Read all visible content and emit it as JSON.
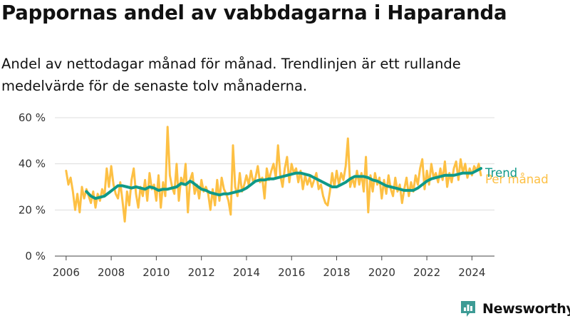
{
  "header": {
    "title": "Pappornas andel av vabbdagarna i Haparanda",
    "subtitle": "Andel av nettodagar månad för månad. Trendlinjen är ett rullande medelvärde för de senaste tolv månaderna."
  },
  "brand": {
    "name": "Newsworthy",
    "icon": "newsworthy-logo-icon",
    "color": "#3d9b95"
  },
  "colors": {
    "monthly": "#fdc044",
    "trend": "#0e9988",
    "grid": "#dddddd",
    "axis": "#444444"
  },
  "chart_data": {
    "type": "line",
    "title": "Pappornas andel av vabbdagarna i Haparanda",
    "subtitle": "Andel av nettodagar månad för månad. Trendlinjen är ett rullande medelvärde för de senaste tolv månaderna.",
    "xlabel": "",
    "ylabel": "",
    "xlim": [
      2005.5,
      2025.0
    ],
    "ylim": [
      0,
      60
    ],
    "y_ticks": [
      0,
      20,
      40,
      60
    ],
    "y_tick_labels": [
      "0 %",
      "20 %",
      "40 %",
      "60 %"
    ],
    "x_ticks": [
      2006,
      2008,
      2010,
      2012,
      2014,
      2016,
      2018,
      2020,
      2022,
      2024
    ],
    "x_tick_labels": [
      "2006",
      "2008",
      "2010",
      "2012",
      "2014",
      "2016",
      "2018",
      "2020",
      "2022",
      "2024"
    ],
    "grid": "horizontal",
    "legend": "inline-right",
    "series": [
      {
        "name": "Per månad",
        "color": "#fdc044",
        "points": [
          [
            2006.0,
            37
          ],
          [
            2006.1,
            31
          ],
          [
            2006.2,
            34
          ],
          [
            2006.3,
            28
          ],
          [
            2006.4,
            20
          ],
          [
            2006.5,
            27
          ],
          [
            2006.6,
            19
          ],
          [
            2006.7,
            30
          ],
          [
            2006.8,
            25
          ],
          [
            2006.9,
            29
          ],
          [
            2007.0,
            26
          ],
          [
            2007.1,
            23
          ],
          [
            2007.2,
            28
          ],
          [
            2007.3,
            21
          ],
          [
            2007.4,
            27
          ],
          [
            2007.5,
            24
          ],
          [
            2007.6,
            29
          ],
          [
            2007.7,
            26
          ],
          [
            2007.8,
            38
          ],
          [
            2007.9,
            30
          ],
          [
            2008.0,
            39
          ],
          [
            2008.1,
            31
          ],
          [
            2008.2,
            27
          ],
          [
            2008.3,
            25
          ],
          [
            2008.4,
            32
          ],
          [
            2008.5,
            24
          ],
          [
            2008.6,
            15
          ],
          [
            2008.7,
            28
          ],
          [
            2008.8,
            22
          ],
          [
            2008.9,
            33
          ],
          [
            2009.0,
            38
          ],
          [
            2009.1,
            27
          ],
          [
            2009.2,
            21
          ],
          [
            2009.3,
            30
          ],
          [
            2009.4,
            26
          ],
          [
            2009.5,
            33
          ],
          [
            2009.6,
            24
          ],
          [
            2009.7,
            36
          ],
          [
            2009.8,
            29
          ],
          [
            2009.9,
            31
          ],
          [
            2010.0,
            24
          ],
          [
            2010.1,
            35
          ],
          [
            2010.2,
            21
          ],
          [
            2010.3,
            32
          ],
          [
            2010.4,
            26
          ],
          [
            2010.5,
            56
          ],
          [
            2010.6,
            35
          ],
          [
            2010.7,
            30
          ],
          [
            2010.8,
            27
          ],
          [
            2010.9,
            40
          ],
          [
            2011.0,
            24
          ],
          [
            2011.1,
            34
          ],
          [
            2011.2,
            31
          ],
          [
            2011.3,
            40
          ],
          [
            2011.4,
            19
          ],
          [
            2011.5,
            33
          ],
          [
            2011.6,
            36
          ],
          [
            2011.7,
            27
          ],
          [
            2011.8,
            31
          ],
          [
            2011.9,
            25
          ],
          [
            2012.0,
            33
          ],
          [
            2012.1,
            28
          ],
          [
            2012.2,
            30
          ],
          [
            2012.3,
            27
          ],
          [
            2012.4,
            20
          ],
          [
            2012.5,
            29
          ],
          [
            2012.6,
            22
          ],
          [
            2012.7,
            33
          ],
          [
            2012.8,
            24
          ],
          [
            2012.9,
            34
          ],
          [
            2013.0,
            29
          ],
          [
            2013.1,
            27
          ],
          [
            2013.2,
            24
          ],
          [
            2013.3,
            18
          ],
          [
            2013.4,
            48
          ],
          [
            2013.5,
            30
          ],
          [
            2013.6,
            26
          ],
          [
            2013.7,
            36
          ],
          [
            2013.8,
            28
          ],
          [
            2013.9,
            31
          ],
          [
            2014.0,
            35
          ],
          [
            2014.1,
            31
          ],
          [
            2014.2,
            37
          ],
          [
            2014.3,
            32
          ],
          [
            2014.4,
            34
          ],
          [
            2014.5,
            39
          ],
          [
            2014.6,
            32
          ],
          [
            2014.7,
            34
          ],
          [
            2014.8,
            25
          ],
          [
            2014.9,
            38
          ],
          [
            2015.0,
            33
          ],
          [
            2015.1,
            37
          ],
          [
            2015.2,
            40
          ],
          [
            2015.3,
            34
          ],
          [
            2015.4,
            48
          ],
          [
            2015.5,
            35
          ],
          [
            2015.6,
            30
          ],
          [
            2015.7,
            38
          ],
          [
            2015.8,
            43
          ],
          [
            2015.9,
            32
          ],
          [
            2016.0,
            40
          ],
          [
            2016.1,
            36
          ],
          [
            2016.2,
            38
          ],
          [
            2016.3,
            32
          ],
          [
            2016.4,
            37
          ],
          [
            2016.5,
            29
          ],
          [
            2016.6,
            35
          ],
          [
            2016.7,
            31
          ],
          [
            2016.8,
            34
          ],
          [
            2016.9,
            30
          ],
          [
            2017.0,
            33
          ],
          [
            2017.1,
            36
          ],
          [
            2017.2,
            29
          ],
          [
            2017.3,
            31
          ],
          [
            2017.4,
            26
          ],
          [
            2017.5,
            23
          ],
          [
            2017.6,
            22
          ],
          [
            2017.7,
            28
          ],
          [
            2017.8,
            36
          ],
          [
            2017.9,
            30
          ],
          [
            2018.0,
            37
          ],
          [
            2018.1,
            31
          ],
          [
            2018.2,
            36
          ],
          [
            2018.3,
            33
          ],
          [
            2018.4,
            39
          ],
          [
            2018.5,
            51
          ],
          [
            2018.6,
            30
          ],
          [
            2018.7,
            34
          ],
          [
            2018.8,
            30
          ],
          [
            2018.9,
            37
          ],
          [
            2019.0,
            31
          ],
          [
            2019.1,
            36
          ],
          [
            2019.2,
            28
          ],
          [
            2019.3,
            43
          ],
          [
            2019.4,
            19
          ],
          [
            2019.5,
            35
          ],
          [
            2019.6,
            28
          ],
          [
            2019.7,
            36
          ],
          [
            2019.8,
            31
          ],
          [
            2019.9,
            34
          ],
          [
            2020.0,
            25
          ],
          [
            2020.1,
            33
          ],
          [
            2020.2,
            27
          ],
          [
            2020.3,
            35
          ],
          [
            2020.4,
            29
          ],
          [
            2020.5,
            26
          ],
          [
            2020.6,
            34
          ],
          [
            2020.7,
            28
          ],
          [
            2020.8,
            31
          ],
          [
            2020.9,
            23
          ],
          [
            2021.0,
            29
          ],
          [
            2021.1,
            34
          ],
          [
            2021.2,
            26
          ],
          [
            2021.3,
            32
          ],
          [
            2021.4,
            28
          ],
          [
            2021.5,
            35
          ],
          [
            2021.6,
            31
          ],
          [
            2021.7,
            38
          ],
          [
            2021.8,
            42
          ],
          [
            2021.9,
            29
          ],
          [
            2022.0,
            37
          ],
          [
            2022.1,
            31
          ],
          [
            2022.2,
            40
          ],
          [
            2022.3,
            34
          ],
          [
            2022.4,
            36
          ],
          [
            2022.5,
            32
          ],
          [
            2022.6,
            38
          ],
          [
            2022.7,
            33
          ],
          [
            2022.8,
            41
          ],
          [
            2022.9,
            30
          ],
          [
            2023.0,
            36
          ],
          [
            2023.1,
            32
          ],
          [
            2023.2,
            38
          ],
          [
            2023.3,
            41
          ],
          [
            2023.4,
            33
          ],
          [
            2023.5,
            42
          ],
          [
            2023.6,
            36
          ],
          [
            2023.7,
            40
          ],
          [
            2023.8,
            34
          ],
          [
            2023.9,
            38
          ],
          [
            2024.0,
            35
          ],
          [
            2024.1,
            39
          ],
          [
            2024.2,
            37
          ],
          [
            2024.3,
            40
          ],
          [
            2024.4,
            35
          ]
        ]
      },
      {
        "name": "Trend",
        "color": "#0e9988",
        "points": [
          [
            2006.9,
            28
          ],
          [
            2007.1,
            26
          ],
          [
            2007.3,
            25
          ],
          [
            2007.5,
            25.5
          ],
          [
            2007.7,
            26
          ],
          [
            2007.9,
            27.5
          ],
          [
            2008.1,
            29
          ],
          [
            2008.3,
            30.5
          ],
          [
            2008.5,
            30.5
          ],
          [
            2008.7,
            30
          ],
          [
            2008.9,
            29.5
          ],
          [
            2009.1,
            30
          ],
          [
            2009.3,
            29.5
          ],
          [
            2009.5,
            29
          ],
          [
            2009.7,
            30
          ],
          [
            2009.9,
            29.5
          ],
          [
            2010.1,
            28.5
          ],
          [
            2010.3,
            29
          ],
          [
            2010.5,
            29
          ],
          [
            2010.7,
            29.5
          ],
          [
            2010.9,
            30
          ],
          [
            2011.1,
            31.5
          ],
          [
            2011.3,
            31
          ],
          [
            2011.5,
            32.5
          ],
          [
            2011.6,
            32
          ],
          [
            2011.8,
            30.5
          ],
          [
            2012.0,
            29
          ],
          [
            2012.2,
            28.5
          ],
          [
            2012.4,
            27.5
          ],
          [
            2012.6,
            27
          ],
          [
            2012.8,
            26.5
          ],
          [
            2013.0,
            27
          ],
          [
            2013.2,
            27
          ],
          [
            2013.4,
            27.5
          ],
          [
            2013.6,
            28
          ],
          [
            2013.8,
            28.5
          ],
          [
            2014.0,
            29.5
          ],
          [
            2014.2,
            31
          ],
          [
            2014.4,
            32.5
          ],
          [
            2014.6,
            33
          ],
          [
            2014.8,
            33
          ],
          [
            2015.0,
            33.5
          ],
          [
            2015.2,
            33.5
          ],
          [
            2015.4,
            34
          ],
          [
            2015.6,
            34.5
          ],
          [
            2015.8,
            35
          ],
          [
            2016.0,
            35.5
          ],
          [
            2016.2,
            36
          ],
          [
            2016.4,
            36
          ],
          [
            2016.6,
            35.5
          ],
          [
            2016.8,
            35
          ],
          [
            2017.0,
            34
          ],
          [
            2017.2,
            33
          ],
          [
            2017.4,
            32
          ],
          [
            2017.6,
            31
          ],
          [
            2017.8,
            30
          ],
          [
            2018.0,
            30
          ],
          [
            2018.2,
            31
          ],
          [
            2018.4,
            32
          ],
          [
            2018.6,
            33.5
          ],
          [
            2018.8,
            34.5
          ],
          [
            2019.0,
            34.5
          ],
          [
            2019.2,
            34.5
          ],
          [
            2019.4,
            34
          ],
          [
            2019.6,
            33
          ],
          [
            2019.8,
            32.5
          ],
          [
            2020.0,
            31.5
          ],
          [
            2020.2,
            30.5
          ],
          [
            2020.4,
            30
          ],
          [
            2020.6,
            29.5
          ],
          [
            2020.8,
            29
          ],
          [
            2021.0,
            28.5
          ],
          [
            2021.2,
            28.5
          ],
          [
            2021.4,
            28.5
          ],
          [
            2021.6,
            29.5
          ],
          [
            2021.8,
            31
          ],
          [
            2022.0,
            32.5
          ],
          [
            2022.2,
            33.5
          ],
          [
            2022.4,
            34
          ],
          [
            2022.6,
            34.5
          ],
          [
            2022.8,
            35
          ],
          [
            2023.0,
            35
          ],
          [
            2023.2,
            35
          ],
          [
            2023.4,
            35.5
          ],
          [
            2023.6,
            36
          ],
          [
            2023.8,
            36
          ],
          [
            2024.0,
            36
          ],
          [
            2024.2,
            37
          ],
          [
            2024.4,
            38
          ]
        ]
      }
    ]
  }
}
